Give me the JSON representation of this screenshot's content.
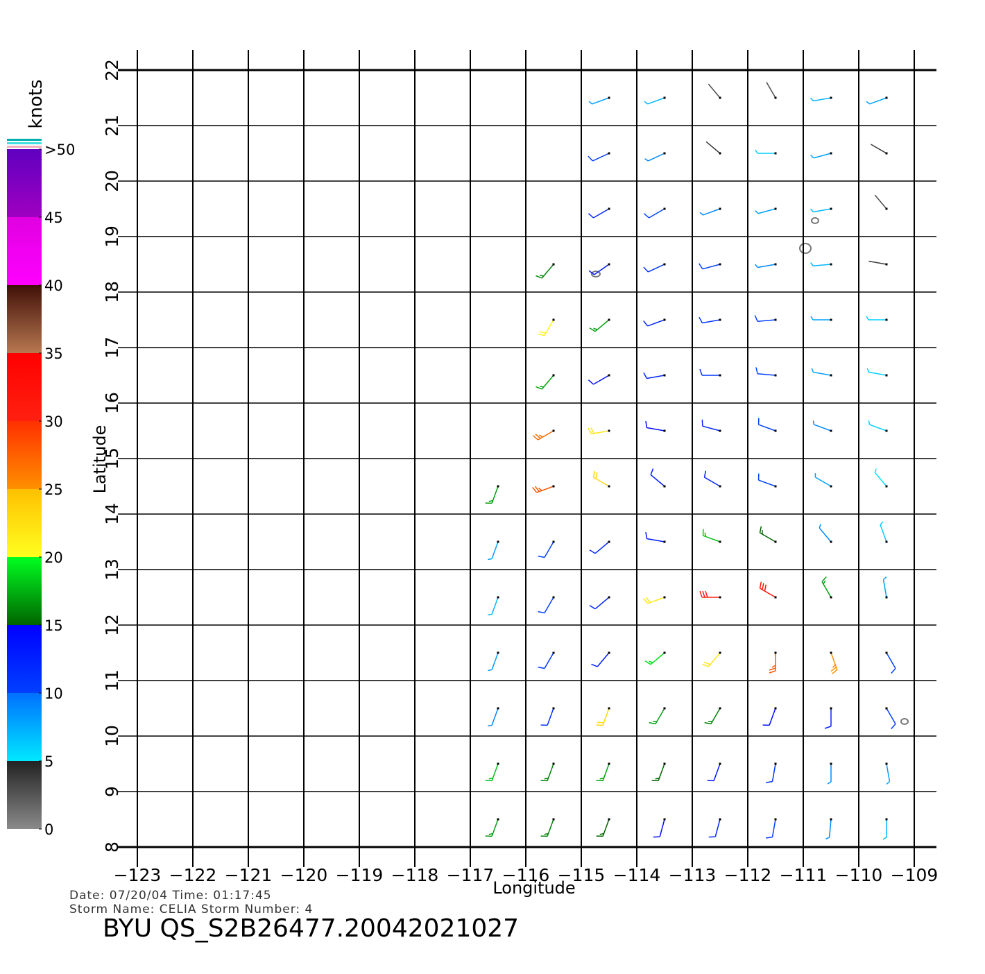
{
  "chart_data": {
    "type": "wind-barbs",
    "xlabel": "Longitude",
    "ylabel": "Latitude",
    "xlim": [
      -123,
      -109
    ],
    "ylim": [
      8,
      22
    ],
    "xticks": [
      {
        "value": -123,
        "label": "−123"
      },
      {
        "value": -122,
        "label": "−122"
      },
      {
        "value": -121,
        "label": "−121"
      },
      {
        "value": -120,
        "label": "−120"
      },
      {
        "value": -119,
        "label": "−119"
      },
      {
        "value": -118,
        "label": "−118"
      },
      {
        "value": -117,
        "label": "−117"
      },
      {
        "value": -116,
        "label": "−116"
      },
      {
        "value": -115,
        "label": "−115"
      },
      {
        "value": -114,
        "label": "−114"
      },
      {
        "value": -113,
        "label": "−113"
      },
      {
        "value": -112,
        "label": "−112"
      },
      {
        "value": -111,
        "label": "−111"
      },
      {
        "value": -110,
        "label": "−110"
      },
      {
        "value": -109,
        "label": "−109"
      }
    ],
    "yticks": [
      8,
      9,
      10,
      11,
      12,
      13,
      14,
      15,
      16,
      17,
      18,
      19,
      20,
      21,
      22
    ],
    "grid": true,
    "colorbar": {
      "label": "knots",
      "lim": [
        0,
        50
      ],
      "ticks": [
        0,
        5,
        10,
        15,
        20,
        25,
        30,
        35,
        40,
        45,
        {
          "value": 50,
          "label": ">50"
        }
      ],
      "segments": [
        {
          "range": [
            0,
            5
          ],
          "colors": [
            "#8a8a8a",
            "#222222"
          ]
        },
        {
          "range": [
            5,
            10
          ],
          "colors": [
            "#00e8ff",
            "#0070ff"
          ]
        },
        {
          "range": [
            10,
            15
          ],
          "colors": [
            "#0040ff",
            "#0000ff"
          ]
        },
        {
          "range": [
            15,
            20
          ],
          "colors": [
            "#006400",
            "#00ff20"
          ]
        },
        {
          "range": [
            20,
            25
          ],
          "colors": [
            "#ffff20",
            "#ffc000"
          ]
        },
        {
          "range": [
            25,
            30
          ],
          "colors": [
            "#ff9000",
            "#ff3000"
          ]
        },
        {
          "range": [
            30,
            35
          ],
          "colors": [
            "#ff2010",
            "#ff0000"
          ]
        },
        {
          "range": [
            35,
            40
          ],
          "colors": [
            "#b87850",
            "#401008"
          ]
        },
        {
          "range": [
            40,
            45
          ],
          "colors": [
            "#ff00ff",
            "#e000e0"
          ]
        },
        {
          "range": [
            45,
            50
          ],
          "colors": [
            "#a000c0",
            "#6000c0"
          ]
        }
      ]
    },
    "wind": {
      "lon": [
        -114.5,
        -113.5,
        -112.5,
        -111.5,
        -110.5,
        -109.5,
        -114.5,
        -113.5,
        -112.5,
        -111.5,
        -110.5,
        -109.5,
        -114.5,
        -113.5,
        -112.5,
        -111.5,
        -110.5,
        -109.5,
        -115.5,
        -114.5,
        -113.5,
        -112.5,
        -111.5,
        -110.5,
        -109.5,
        -115.5,
        -114.5,
        -113.5,
        -112.5,
        -111.5,
        -110.5,
        -109.5,
        -115.5,
        -114.5,
        -113.5,
        -112.5,
        -111.5,
        -110.5,
        -109.5,
        -115.5,
        -114.5,
        -113.5,
        -112.5,
        -111.5,
        -110.5,
        -109.5,
        -116.5,
        -115.5,
        -114.5,
        -113.5,
        -112.5,
        -111.5,
        -110.5,
        -109.5,
        -116.5,
        -115.5,
        -114.5,
        -113.5,
        -112.5,
        -111.5,
        -110.5,
        -109.5,
        -116.5,
        -115.5,
        -114.5,
        -113.5,
        -112.5,
        -111.5,
        -110.5,
        -109.5,
        -116.5,
        -115.5,
        -114.5,
        -113.5,
        -112.5,
        -111.5,
        -110.5,
        -109.5,
        -116.5,
        -115.5,
        -114.5,
        -113.5,
        -112.5,
        -111.5,
        -110.5,
        -109.5,
        -116.5,
        -115.5,
        -114.5,
        -113.5,
        -112.5,
        -111.5,
        -110.5,
        -109.5,
        -116.5,
        -115.5,
        -114.5,
        -113.5,
        -112.5,
        -111.5,
        -110.5,
        -109.5
      ],
      "lat": [
        21.5,
        21.5,
        21.5,
        21.5,
        21.5,
        21.5,
        20.5,
        20.5,
        20.5,
        20.5,
        20.5,
        20.5,
        19.5,
        19.5,
        19.5,
        19.5,
        19.5,
        19.5,
        18.5,
        18.5,
        18.5,
        18.5,
        18.5,
        18.5,
        18.5,
        17.5,
        17.5,
        17.5,
        17.5,
        17.5,
        17.5,
        17.5,
        16.5,
        16.5,
        16.5,
        16.5,
        16.5,
        16.5,
        16.5,
        15.5,
        15.5,
        15.5,
        15.5,
        15.5,
        15.5,
        15.5,
        14.5,
        14.5,
        14.5,
        14.5,
        14.5,
        14.5,
        14.5,
        14.5,
        13.5,
        13.5,
        13.5,
        13.5,
        13.5,
        13.5,
        13.5,
        13.5,
        12.5,
        12.5,
        12.5,
        12.5,
        12.5,
        12.5,
        12.5,
        12.5,
        11.5,
        11.5,
        11.5,
        11.5,
        11.5,
        11.5,
        11.5,
        11.5,
        10.5,
        10.5,
        10.5,
        10.5,
        10.5,
        10.5,
        10.5,
        10.5,
        9.5,
        9.5,
        9.5,
        9.5,
        9.5,
        9.5,
        9.5,
        9.5,
        8.5,
        8.5,
        8.5,
        8.5,
        8.5,
        8.5,
        8.5,
        8.5
      ],
      "speed": [
        8,
        7,
        3,
        3,
        7,
        8,
        10,
        9,
        4,
        6,
        8,
        4,
        12,
        10,
        9,
        8,
        7,
        3,
        16,
        13,
        11,
        10,
        9,
        7,
        4,
        21,
        17,
        12,
        11,
        10,
        8,
        6,
        17,
        14,
        12,
        11,
        10,
        8,
        6,
        27,
        22,
        14,
        12,
        10,
        9,
        6,
        17,
        28,
        23,
        13,
        12,
        10,
        8,
        5,
        8,
        10,
        12,
        13,
        18,
        15,
        9,
        6,
        7,
        10,
        12,
        22,
        30,
        32,
        17,
        8,
        8,
        11,
        13,
        19,
        22,
        28,
        25,
        10,
        9,
        11,
        23,
        17,
        16,
        14,
        12,
        10,
        18,
        16,
        17,
        15,
        13,
        11,
        9,
        8,
        17,
        16,
        15,
        14,
        12,
        10,
        9,
        7
      ],
      "direction": [
        250,
        250,
        320,
        330,
        260,
        250,
        245,
        245,
        310,
        270,
        255,
        300,
        240,
        240,
        250,
        255,
        260,
        320,
        220,
        235,
        245,
        255,
        260,
        265,
        280,
        210,
        230,
        250,
        260,
        265,
        270,
        270,
        220,
        240,
        260,
        270,
        275,
        280,
        280,
        240,
        260,
        280,
        285,
        290,
        290,
        290,
        200,
        250,
        300,
        310,
        300,
        290,
        300,
        320,
        200,
        210,
        230,
        280,
        290,
        300,
        320,
        340,
        200,
        210,
        230,
        250,
        270,
        300,
        330,
        350,
        200,
        210,
        220,
        230,
        220,
        180,
        160,
        150,
        200,
        200,
        200,
        210,
        210,
        200,
        180,
        150,
        200,
        200,
        200,
        200,
        200,
        190,
        180,
        170,
        200,
        200,
        200,
        195,
        195,
        190,
        185,
        180
      ]
    }
  },
  "footer": {
    "date_line": "Date:  07/20/04    Time:  01:17:45",
    "storm_line": "Storm  Name:  CELIA    Storm  Number:  4",
    "file_name": "BYU  QS_S2B26477.20042021027"
  }
}
